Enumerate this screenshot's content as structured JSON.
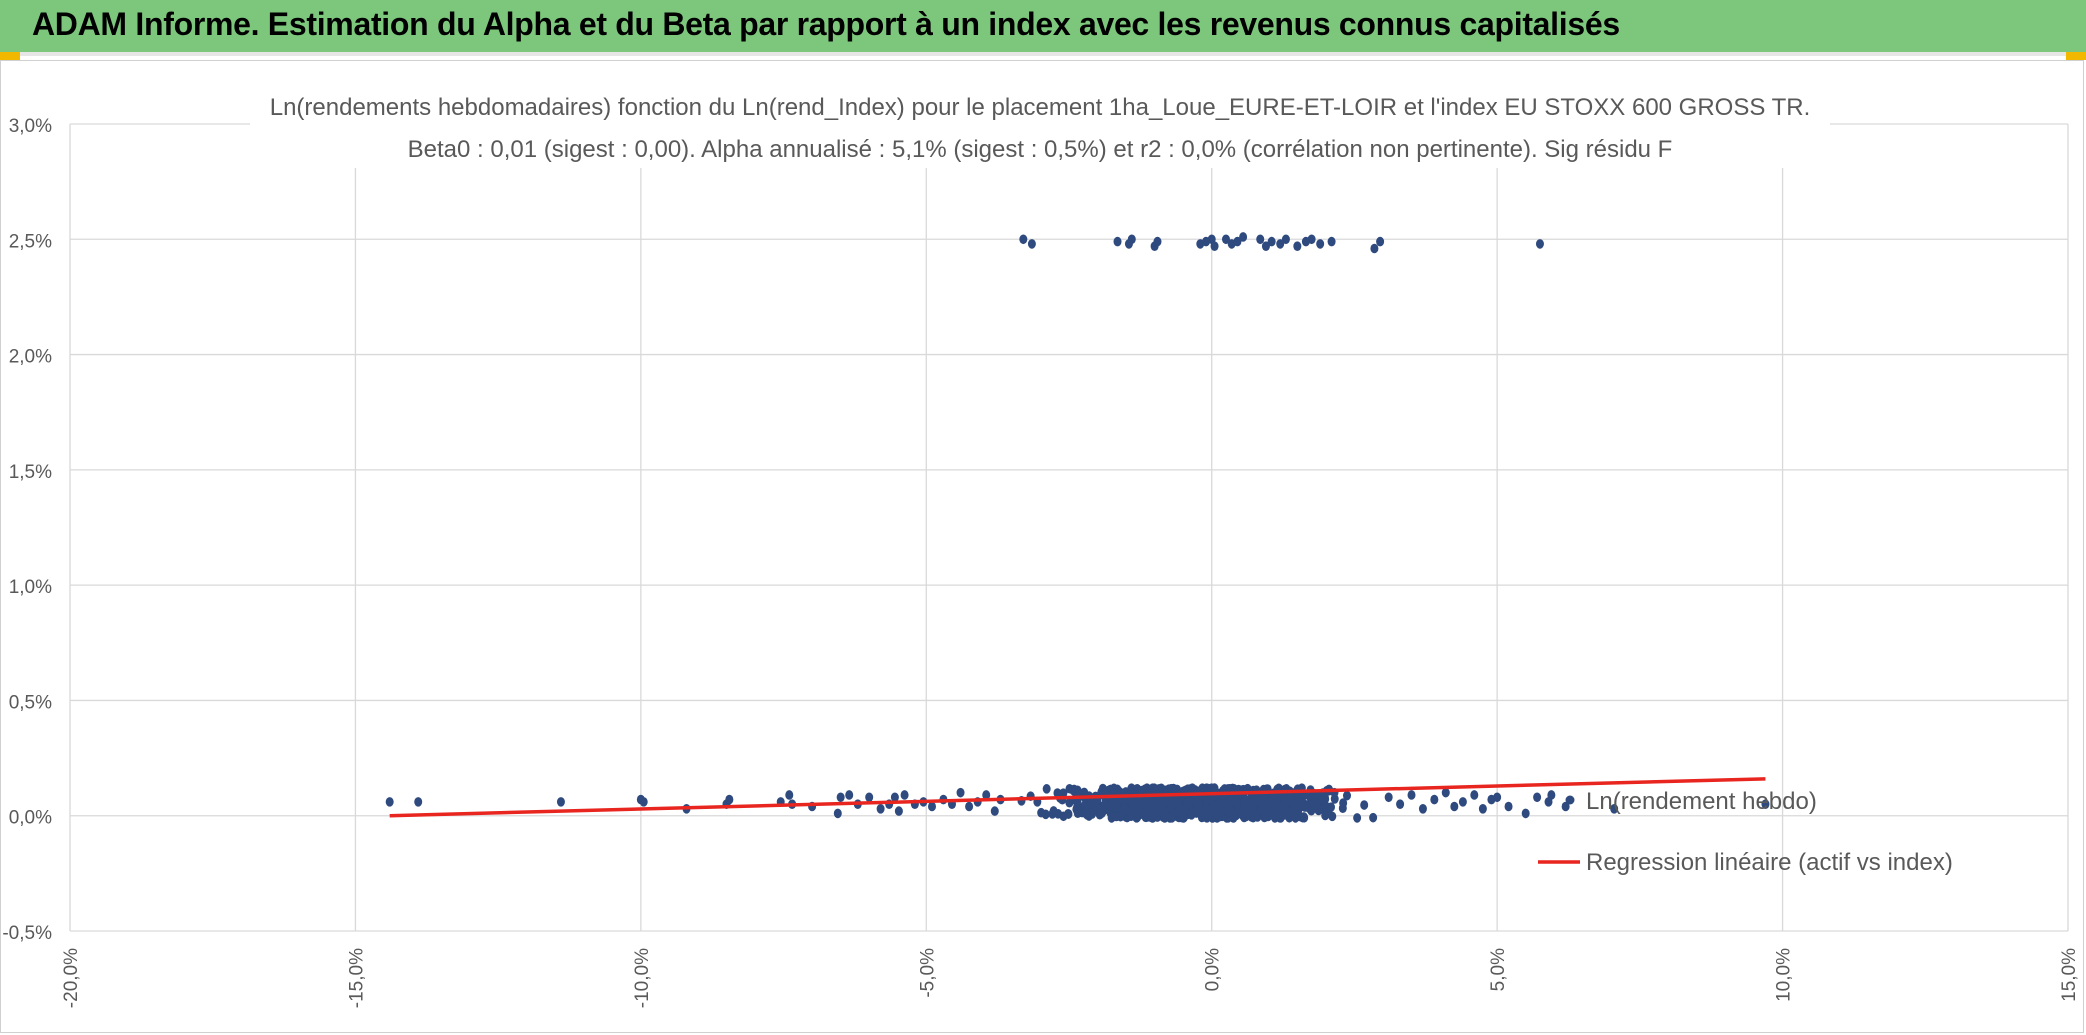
{
  "banner": {
    "title": "ADAM Informe. Estimation du Alpha et du Beta par rapport à un index avec les revenus connus capitalisés"
  },
  "colors": {
    "banner_bg": "#7dc77d",
    "accent_corner": "#f2b800",
    "points": "#2e4a7e",
    "regression": "#e8251f",
    "grid": "#d9d9d9"
  },
  "chart_data": {
    "type": "scatter",
    "title_line1": "Ln(rendements hebdomadaires) fonction du Ln(rend_Index) pour le placement 1ha_Loue_EURE-ET-LOIR et l'index EU STOXX 600 GROSS TR.",
    "title_line2": "Beta0 : 0,01 (sigest : 0,00). Alpha annualisé : 5,1% (sigest : 0,5%) et r2 : 0,0% (corrélation non pertinente). Sig résidu F",
    "xlim": [
      -0.2,
      0.15
    ],
    "ylim": [
      -0.005,
      0.03
    ],
    "x_ticks": [
      -0.2,
      -0.15,
      -0.1,
      -0.05,
      0.0,
      0.05,
      0.1,
      0.15
    ],
    "x_tick_labels": [
      "-20,0%",
      "-15,0%",
      "-10,0%",
      "-5,0%",
      "0,0%",
      "5,0%",
      "10,0%",
      "15,0%"
    ],
    "y_ticks": [
      -0.005,
      0.0,
      0.005,
      0.01,
      0.015,
      0.02,
      0.025,
      0.03
    ],
    "y_tick_labels": [
      "-0,5%",
      "0,0%",
      "0,5%",
      "1,0%",
      "1,5%",
      "2,0%",
      "2,5%",
      "3,0%"
    ],
    "grid": true,
    "legend_position": "right",
    "series": [
      {
        "name": "Ln(rendement hebdo)",
        "kind": "scatter",
        "color": "#2e4a7e",
        "points": [
          [
            -0.144,
            0.0006
          ],
          [
            -0.139,
            0.0006
          ],
          [
            -0.114,
            0.0006
          ],
          [
            -0.1,
            0.0007
          ],
          [
            -0.0995,
            0.0006
          ],
          [
            -0.092,
            0.0003
          ],
          [
            -0.085,
            0.0005
          ],
          [
            -0.0845,
            0.0007
          ],
          [
            -0.0755,
            0.0006
          ],
          [
            -0.074,
            0.0009
          ],
          [
            -0.0735,
            0.0005
          ],
          [
            -0.07,
            0.0004
          ],
          [
            -0.0655,
            0.0001
          ],
          [
            -0.065,
            0.0008
          ],
          [
            -0.0635,
            0.0009
          ],
          [
            -0.062,
            0.0005
          ],
          [
            -0.06,
            0.0008
          ],
          [
            -0.058,
            0.0003
          ],
          [
            -0.0565,
            0.0005
          ],
          [
            -0.0555,
            0.0008
          ],
          [
            -0.0548,
            0.0002
          ],
          [
            -0.0538,
            0.0009
          ],
          [
            -0.052,
            0.0005
          ],
          [
            -0.0505,
            0.0006
          ],
          [
            -0.049,
            0.0004
          ],
          [
            -0.047,
            0.0007
          ],
          [
            -0.0455,
            0.0005
          ],
          [
            -0.044,
            0.001
          ],
          [
            -0.0425,
            0.0004
          ],
          [
            -0.041,
            0.0006
          ],
          [
            -0.0395,
            0.0009
          ],
          [
            -0.038,
            0.0002
          ],
          [
            -0.037,
            0.0007
          ],
          [
            -0.033,
            0.025
          ],
          [
            -0.0315,
            0.0248
          ],
          [
            -0.0165,
            0.0249
          ],
          [
            -0.0145,
            0.0248
          ],
          [
            -0.014,
            0.025
          ],
          [
            -0.01,
            0.0247
          ],
          [
            -0.0095,
            0.0249
          ],
          [
            -0.002,
            0.0248
          ],
          [
            -0.001,
            0.0249
          ],
          [
            0.0,
            0.025
          ],
          [
            0.0005,
            0.0247
          ],
          [
            0.0025,
            0.025
          ],
          [
            0.0035,
            0.0248
          ],
          [
            0.0045,
            0.0249
          ],
          [
            0.0055,
            0.0251
          ],
          [
            0.0085,
            0.025
          ],
          [
            0.0095,
            0.0247
          ],
          [
            0.0105,
            0.0249
          ],
          [
            0.012,
            0.0248
          ],
          [
            0.013,
            0.025
          ],
          [
            0.015,
            0.0247
          ],
          [
            0.0165,
            0.0249
          ],
          [
            0.0175,
            0.025
          ],
          [
            0.019,
            0.0248
          ],
          [
            0.021,
            0.0249
          ],
          [
            0.0285,
            0.0246
          ],
          [
            0.0295,
            0.0249
          ],
          [
            0.0575,
            0.0248
          ],
          [
            0.031,
            0.0008
          ],
          [
            0.033,
            0.0005
          ],
          [
            0.035,
            0.0009
          ],
          [
            0.037,
            0.0003
          ],
          [
            0.039,
            0.0007
          ],
          [
            0.041,
            0.001
          ],
          [
            0.0425,
            0.0004
          ],
          [
            0.044,
            0.0006
          ],
          [
            0.046,
            0.0009
          ],
          [
            0.0475,
            0.0003
          ],
          [
            0.049,
            0.0007
          ],
          [
            0.05,
            0.0008
          ],
          [
            0.052,
            0.0004
          ],
          [
            0.055,
            0.0001
          ],
          [
            0.057,
            0.0008
          ],
          [
            0.059,
            0.0006
          ],
          [
            0.0595,
            0.0009
          ],
          [
            0.062,
            0.0004
          ],
          [
            0.0705,
            0.0003
          ],
          [
            0.097,
            0.0005
          ]
        ],
        "cloud": {
          "x_range": [
            -0.037,
            0.031
          ],
          "y_range": [
            -0.0001,
            0.0012
          ],
          "count": 900,
          "note": "dense cluster of weekly returns around the origin"
        }
      },
      {
        "name": "Regression linéaire (actif vs index)",
        "kind": "line",
        "color": "#e8251f",
        "x": [
          -0.144,
          0.097
        ],
        "y": [
          0.0,
          0.0016
        ]
      }
    ]
  }
}
